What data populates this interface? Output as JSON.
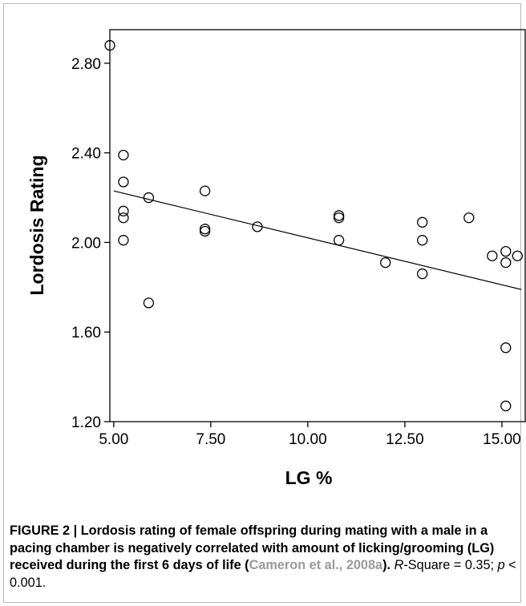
{
  "chart_data": {
    "type": "scatter",
    "xlabel": "LG %",
    "ylabel": "Lordosis Rating",
    "xlim": [
      4.9,
      15.6
    ],
    "ylim": [
      1.2,
      2.95
    ],
    "xticks": [
      5.0,
      7.5,
      10.0,
      12.5,
      15.0
    ],
    "xtick_labels": [
      "5.00",
      "7.50",
      "10.00",
      "12.50",
      "15.00"
    ],
    "yticks": [
      1.2,
      1.6,
      2.0,
      2.4,
      2.8
    ],
    "ytick_labels": [
      "1.20",
      "1.60",
      "2.00",
      "2.40",
      "2.80"
    ],
    "points": [
      {
        "x": 4.9,
        "y": 2.88
      },
      {
        "x": 5.25,
        "y": 2.39
      },
      {
        "x": 5.25,
        "y": 2.27
      },
      {
        "x": 5.25,
        "y": 2.14
      },
      {
        "x": 5.25,
        "y": 2.11
      },
      {
        "x": 5.25,
        "y": 2.01
      },
      {
        "x": 5.9,
        "y": 2.2
      },
      {
        "x": 5.9,
        "y": 1.73
      },
      {
        "x": 7.35,
        "y": 2.23
      },
      {
        "x": 7.35,
        "y": 2.06
      },
      {
        "x": 7.35,
        "y": 2.05
      },
      {
        "x": 8.7,
        "y": 2.07
      },
      {
        "x": 10.8,
        "y": 2.12
      },
      {
        "x": 10.8,
        "y": 2.11
      },
      {
        "x": 10.8,
        "y": 2.01
      },
      {
        "x": 12.0,
        "y": 1.91
      },
      {
        "x": 12.95,
        "y": 2.09
      },
      {
        "x": 12.95,
        "y": 2.01
      },
      {
        "x": 12.95,
        "y": 1.86
      },
      {
        "x": 14.15,
        "y": 2.11
      },
      {
        "x": 14.75,
        "y": 1.94
      },
      {
        "x": 15.1,
        "y": 1.96
      },
      {
        "x": 15.1,
        "y": 1.91
      },
      {
        "x": 15.1,
        "y": 1.53
      },
      {
        "x": 15.1,
        "y": 1.27
      },
      {
        "x": 15.4,
        "y": 1.94
      }
    ],
    "fit_line": {
      "x": [
        5.0,
        15.5
      ],
      "y": [
        2.23,
        1.79
      ]
    },
    "grid": false
  },
  "caption": {
    "label": "FIGURE 2 | Lordosis rating of female offspring during mating with a male in a pacing chamber is negatively correlated with amount of licking/grooming (LG) received during the first 6 days of life (",
    "ref": "Cameron et al., 2008a",
    "label_end": ").",
    "rsq_name": "R",
    "stats": "-Square = 0.35; ",
    "p_name": "p",
    "p_stat": " < 0.001."
  }
}
